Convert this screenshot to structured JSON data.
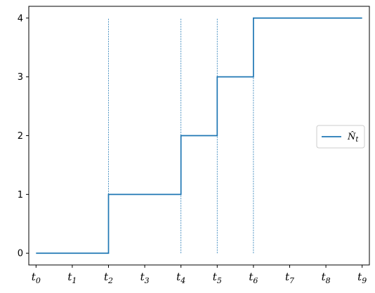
{
  "chart_data": {
    "type": "line",
    "step": true,
    "title": "",
    "xlabel": "",
    "ylabel": "",
    "x_ticks": [
      "t0",
      "t1",
      "t2",
      "t3",
      "t4",
      "t5",
      "t6",
      "t7",
      "t8",
      "t9"
    ],
    "x_tick_base": "t",
    "x_tick_subscripts": [
      "0",
      "1",
      "2",
      "3",
      "4",
      "5",
      "6",
      "7",
      "8",
      "9"
    ],
    "y_ticks": [
      0,
      1,
      2,
      3,
      4
    ],
    "xlim": [
      -0.2,
      9.2
    ],
    "ylim": [
      -0.2,
      4.2
    ],
    "series": [
      {
        "name_base": "N̂",
        "name_subscript": "t",
        "color": "#1f77b4",
        "points": [
          {
            "x": 0,
            "y": 0
          },
          {
            "x": 2,
            "y": 0
          },
          {
            "x": 2,
            "y": 1
          },
          {
            "x": 4,
            "y": 1
          },
          {
            "x": 4,
            "y": 2
          },
          {
            "x": 5,
            "y": 2
          },
          {
            "x": 5,
            "y": 3
          },
          {
            "x": 6,
            "y": 3
          },
          {
            "x": 6,
            "y": 4
          },
          {
            "x": 9,
            "y": 4
          }
        ]
      }
    ],
    "event_lines": [
      {
        "x": 2,
        "y_range": [
          0,
          4
        ]
      },
      {
        "x": 4,
        "y_range": [
          0,
          4
        ]
      },
      {
        "x": 5,
        "y_range": [
          0,
          4
        ]
      },
      {
        "x": 6,
        "y_range": [
          0,
          4
        ]
      }
    ],
    "event_line_color": "#1f77b4",
    "legend_position": "center-right",
    "grid": false
  }
}
